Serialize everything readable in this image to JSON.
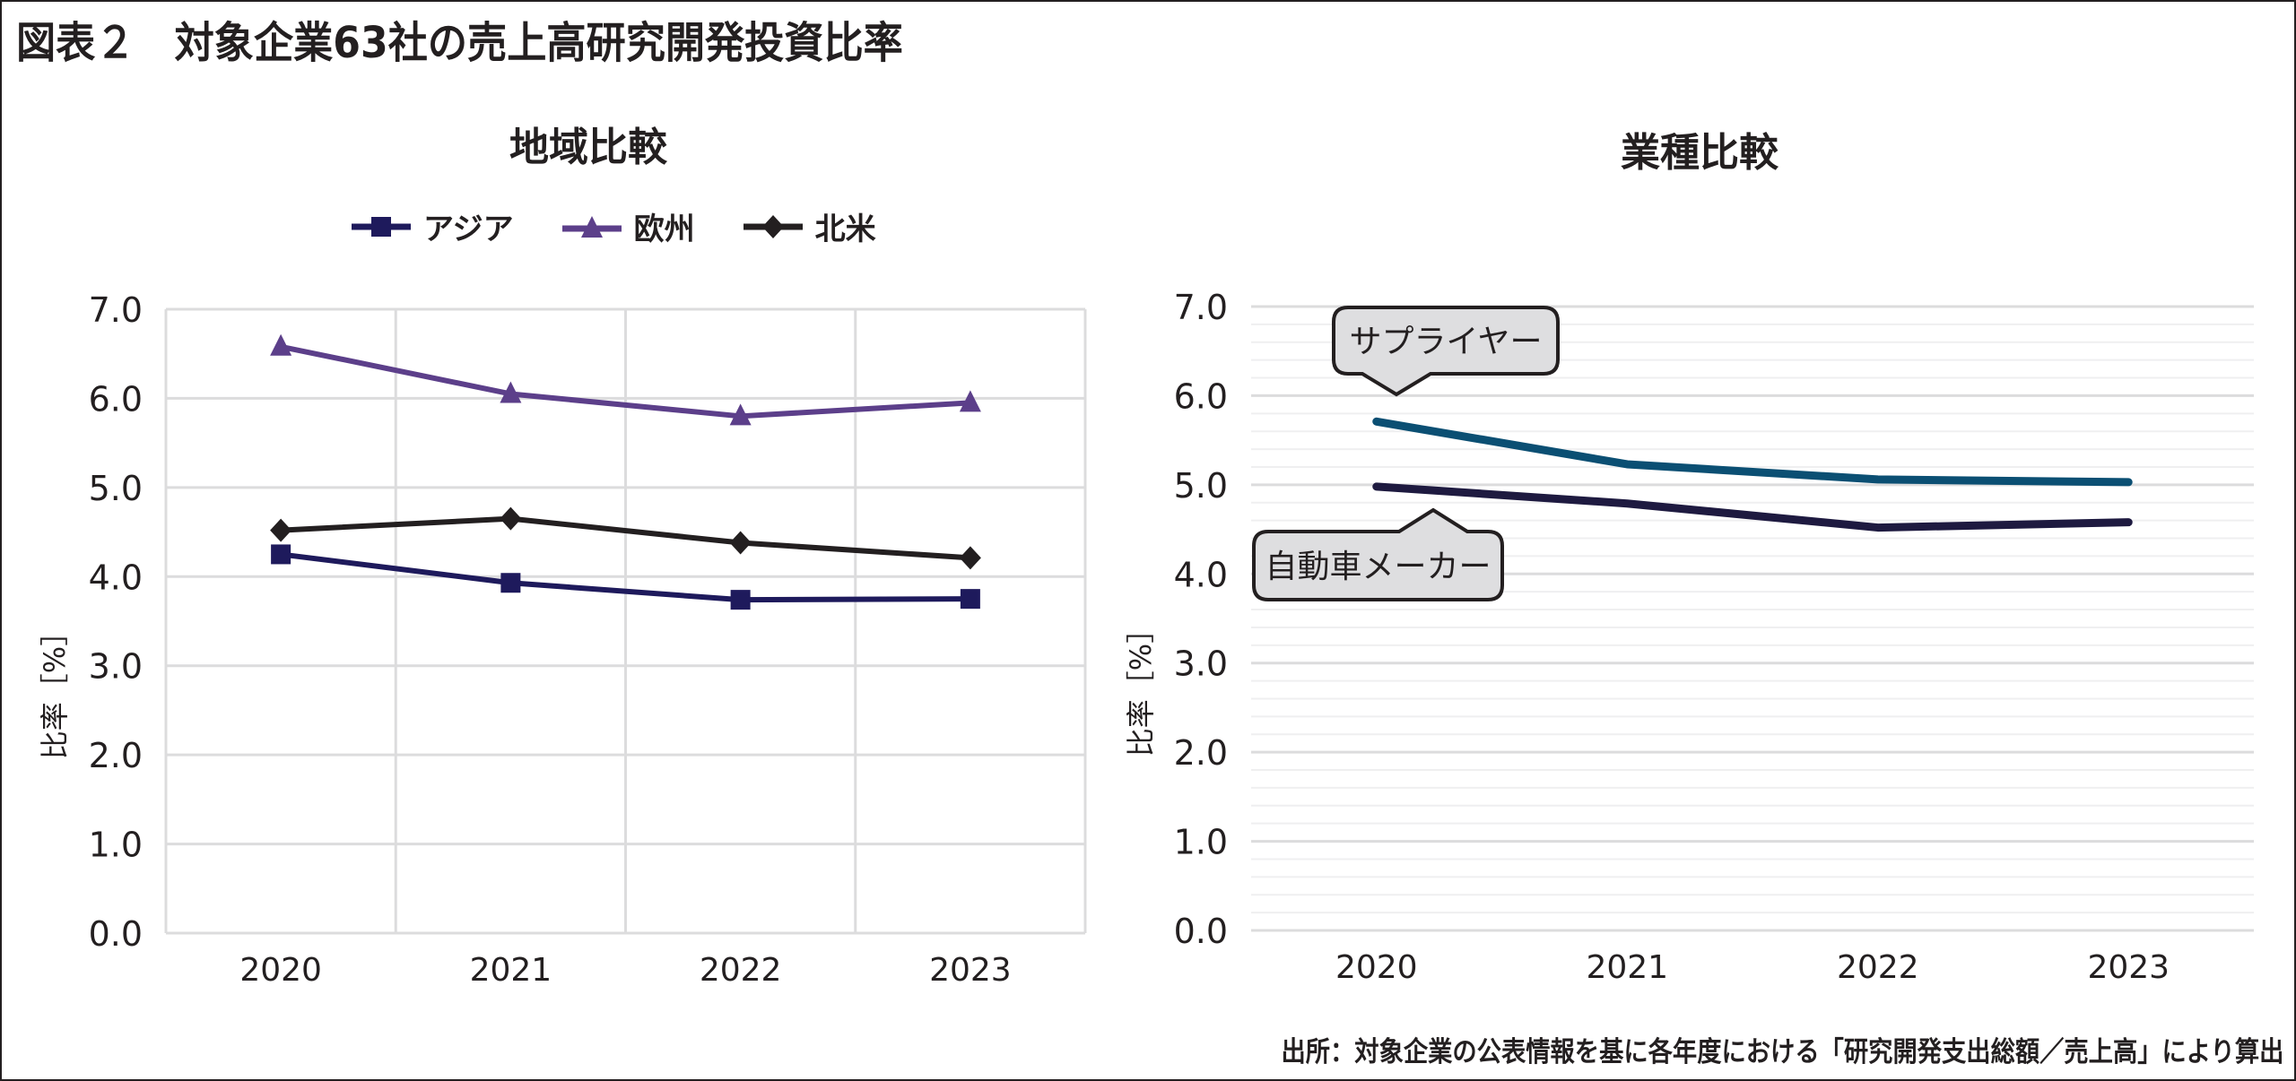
{
  "title": "図表２　対象企業63社の売上高研究開発投資比率",
  "footer": "出所：対象企業の公表情報を基に各年度における「研究開発支出総額／売上高」により算出",
  "chart_data": [
    {
      "id": "region",
      "type": "line",
      "title": "地域比較",
      "xlabel": "",
      "ylabel": "比率［%］",
      "categories": [
        "2020",
        "2021",
        "2022",
        "2023"
      ],
      "ylim": [
        0,
        7
      ],
      "yticks": [
        "0.0",
        "1.0",
        "2.0",
        "3.0",
        "4.0",
        "5.0",
        "6.0",
        "7.0"
      ],
      "grid": "major, vertical and horizontal",
      "legend": "top-center",
      "series": [
        {
          "name": "アジア",
          "marker": "square",
          "color": "#1e1a5c",
          "values": [
            4.25,
            3.93,
            3.74,
            3.75
          ]
        },
        {
          "name": "欧州",
          "marker": "triangle",
          "color": "#5c3f8a",
          "values": [
            6.58,
            6.05,
            5.8,
            5.95
          ]
        },
        {
          "name": "北米",
          "marker": "diamond",
          "color": "#231f20",
          "values": [
            4.52,
            4.65,
            4.38,
            4.21
          ]
        }
      ]
    },
    {
      "id": "industry",
      "type": "line",
      "title": "業種比較",
      "xlabel": "",
      "ylabel": "比率［%］",
      "categories": [
        "2020",
        "2021",
        "2022",
        "2023"
      ],
      "ylim": [
        0,
        7
      ],
      "yticks": [
        "0.0",
        "1.0",
        "2.0",
        "3.0",
        "4.0",
        "5.0",
        "6.0",
        "7.0"
      ],
      "grid": "horizontal major and minor (0.2)",
      "legend": "callouts",
      "series": [
        {
          "name": "サプライヤー",
          "color": "#0b4f73",
          "values": [
            5.71,
            5.23,
            5.06,
            5.03
          ],
          "callout_position": "above"
        },
        {
          "name": "自動車メーカー",
          "color": "#1e1a40",
          "values": [
            4.98,
            4.79,
            4.52,
            4.58
          ],
          "callout_position": "below"
        }
      ]
    }
  ]
}
